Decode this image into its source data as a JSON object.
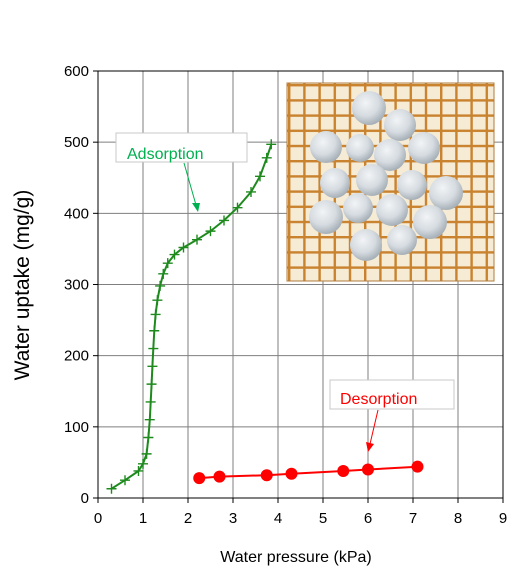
{
  "chart_data": {
    "type": "line",
    "xlabel": "Water pressure (kPa)",
    "ylabel": "Water uptake (mg/g)",
    "xlim": [
      0,
      9
    ],
    "ylim": [
      0,
      600
    ],
    "xticks": [
      "0",
      "1",
      "2",
      "3",
      "4",
      "5",
      "6",
      "7",
      "8",
      "9"
    ],
    "yticks": [
      "0",
      "100",
      "200",
      "300",
      "400",
      "500",
      "600"
    ],
    "grid": true,
    "series": [
      {
        "name": "Adsorption",
        "color": "#1e8a1e",
        "marker": "plus",
        "points": [
          [
            0.3,
            13
          ],
          [
            0.6,
            25
          ],
          [
            0.9,
            38
          ],
          [
            1.0,
            48
          ],
          [
            1.08,
            62
          ],
          [
            1.12,
            85
          ],
          [
            1.15,
            110
          ],
          [
            1.17,
            135
          ],
          [
            1.19,
            160
          ],
          [
            1.21,
            185
          ],
          [
            1.23,
            210
          ],
          [
            1.25,
            235
          ],
          [
            1.28,
            258
          ],
          [
            1.32,
            278
          ],
          [
            1.38,
            298
          ],
          [
            1.45,
            315
          ],
          [
            1.55,
            330
          ],
          [
            1.7,
            342
          ],
          [
            1.9,
            352
          ],
          [
            2.2,
            363
          ],
          [
            2.5,
            375
          ],
          [
            2.8,
            390
          ],
          [
            3.1,
            408
          ],
          [
            3.4,
            430
          ],
          [
            3.6,
            452
          ],
          [
            3.75,
            478
          ],
          [
            3.85,
            497
          ]
        ]
      },
      {
        "name": "Desorption",
        "color": "#ff0000",
        "marker": "circle",
        "points": [
          [
            2.25,
            28
          ],
          [
            2.7,
            30
          ],
          [
            3.75,
            32
          ],
          [
            4.3,
            34
          ],
          [
            5.45,
            38
          ],
          [
            6.0,
            40
          ],
          [
            7.1,
            44
          ]
        ]
      }
    ],
    "annotations": [
      {
        "text": "Adsorption",
        "color": "#00b050"
      },
      {
        "text": "Desorption",
        "color": "#ff0000"
      }
    ],
    "inset": {
      "kind": "photo"
    }
  }
}
